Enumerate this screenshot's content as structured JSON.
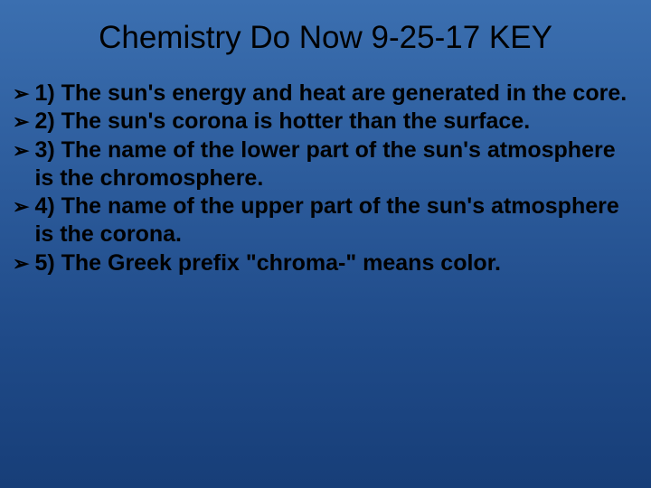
{
  "slide": {
    "title": "Chemistry Do Now 9-25-17 KEY",
    "title_color": "#000000",
    "title_fontsize": 35,
    "background_gradient": [
      "#3b6fb0",
      "#2b5a9a",
      "#1f4a88",
      "#173e78"
    ],
    "bullet_glyph": "➢",
    "bullet_color": "#000000",
    "body_fontsize": 25,
    "body_fontweight": 700,
    "body_color": "#000000",
    "items": [
      "1) The sun's energy and heat are generated in the core.",
      "2) The sun's corona is hotter than the surface.",
      "3) The name of the lower part of the sun's atmosphere is the chromosphere.",
      "4) The name of the upper part of the sun's atmosphere is the corona.",
      "5) The Greek prefix \"chroma-\" means color."
    ]
  }
}
